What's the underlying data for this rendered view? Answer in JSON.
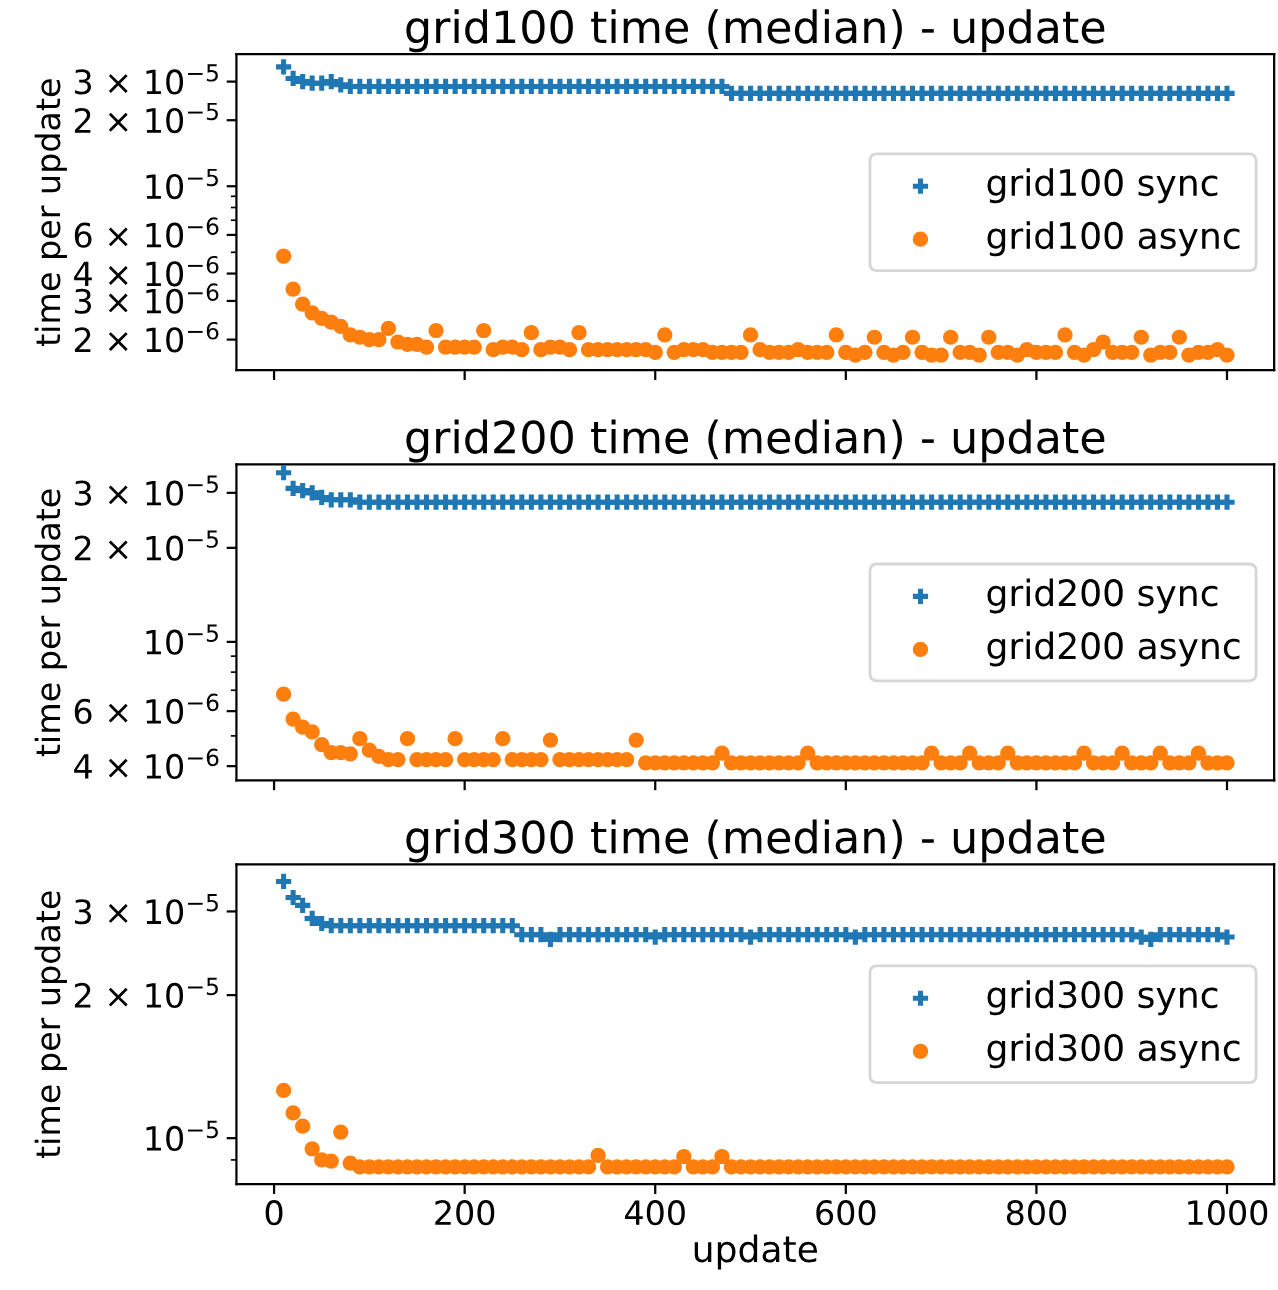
{
  "chart_data": [
    {
      "type": "scatter",
      "title": "grid100 time (median) - update",
      "ylabel": "time per update",
      "log": "y",
      "legend": "right",
      "tick_labels": "y",
      "x": [
        10,
        20,
        30,
        40,
        50,
        60,
        70,
        80,
        90,
        100,
        110,
        120,
        130,
        140,
        150,
        160,
        170,
        180,
        190,
        200,
        210,
        220,
        230,
        240,
        250,
        260,
        270,
        280,
        290,
        300,
        310,
        320,
        330,
        340,
        350,
        360,
        370,
        380,
        390,
        400,
        410,
        420,
        430,
        440,
        450,
        460,
        470,
        480,
        490,
        500,
        510,
        520,
        530,
        540,
        550,
        560,
        570,
        580,
        590,
        600,
        610,
        620,
        630,
        640,
        650,
        660,
        670,
        680,
        690,
        700,
        710,
        720,
        730,
        740,
        750,
        760,
        770,
        780,
        790,
        800,
        810,
        820,
        830,
        840,
        850,
        860,
        870,
        880,
        890,
        900,
        910,
        920,
        930,
        940,
        950,
        960,
        970,
        980,
        990,
        1000
      ],
      "xlim": [
        -39.5,
        1049.5
      ],
      "xticks": [
        0,
        200,
        400,
        600,
        800,
        1000
      ],
      "ylim": [
        1.45e-06,
        4e-05
      ],
      "yticks": [
        {
          "value": 2e-06,
          "label": "2 × 10$^{−6}$"
        },
        {
          "value": 3e-06,
          "label": "3 × 10$^{−6}$"
        },
        {
          "value": 4e-06,
          "label": "4 × 10$^{−6}$"
        },
        {
          "value": 5e-06,
          "label": null
        },
        {
          "value": 6e-06,
          "label": "6 × 10$^{−6}$"
        },
        {
          "value": 7e-06,
          "label": null
        },
        {
          "value": 8e-06,
          "label": null
        },
        {
          "value": 9e-06,
          "label": null
        },
        {
          "value": 1e-05,
          "label": "10$^{−5}$"
        },
        {
          "value": 2e-05,
          "label": "2 × 10$^{−5}$"
        },
        {
          "value": 3e-05,
          "label": "3 × 10$^{−5}$"
        }
      ],
      "series": [
        {
          "name": "grid100 sync",
          "color": "#1f77b4",
          "marker": "cross",
          "values": [
            3.5e-05,
            3.1e-05,
            3e-05,
            2.95e-05,
            2.95e-05,
            3e-05,
            2.9e-05,
            2.85e-05,
            2.85e-05,
            2.85e-05,
            2.85e-05,
            2.85e-05,
            2.85e-05,
            2.85e-05,
            2.85e-05,
            2.85e-05,
            2.85e-05,
            2.85e-05,
            2.85e-05,
            2.85e-05,
            2.85e-05,
            2.85e-05,
            2.85e-05,
            2.85e-05,
            2.85e-05,
            2.85e-05,
            2.85e-05,
            2.85e-05,
            2.85e-05,
            2.85e-05,
            2.85e-05,
            2.85e-05,
            2.85e-05,
            2.85e-05,
            2.85e-05,
            2.85e-05,
            2.85e-05,
            2.85e-05,
            2.85e-05,
            2.85e-05,
            2.85e-05,
            2.85e-05,
            2.85e-05,
            2.85e-05,
            2.85e-05,
            2.85e-05,
            2.85e-05,
            2.65e-05,
            2.65e-05,
            2.65e-05,
            2.65e-05,
            2.65e-05,
            2.65e-05,
            2.65e-05,
            2.65e-05,
            2.65e-05,
            2.65e-05,
            2.65e-05,
            2.65e-05,
            2.65e-05,
            2.65e-05,
            2.65e-05,
            2.65e-05,
            2.65e-05,
            2.65e-05,
            2.65e-05,
            2.65e-05,
            2.65e-05,
            2.65e-05,
            2.65e-05,
            2.65e-05,
            2.65e-05,
            2.65e-05,
            2.65e-05,
            2.65e-05,
            2.65e-05,
            2.65e-05,
            2.65e-05,
            2.65e-05,
            2.65e-05,
            2.65e-05,
            2.65e-05,
            2.65e-05,
            2.65e-05,
            2.65e-05,
            2.65e-05,
            2.65e-05,
            2.65e-05,
            2.65e-05,
            2.65e-05,
            2.65e-05,
            2.65e-05,
            2.65e-05,
            2.65e-05,
            2.65e-05,
            2.65e-05,
            2.65e-05,
            2.65e-05,
            2.65e-05,
            2.65e-05
          ]
        },
        {
          "name": "grid100 async",
          "color": "#ff7f0e",
          "marker": "circle",
          "values": [
            4.8e-06,
            3.4e-06,
            2.9e-06,
            2.65e-06,
            2.5e-06,
            2.4e-06,
            2.3e-06,
            2.1e-06,
            2.05e-06,
            2e-06,
            2e-06,
            2.25e-06,
            1.95e-06,
            1.9e-06,
            1.9e-06,
            1.85e-06,
            2.2e-06,
            1.85e-06,
            1.85e-06,
            1.85e-06,
            1.85e-06,
            2.2e-06,
            1.8e-06,
            1.85e-06,
            1.85e-06,
            1.8e-06,
            2.15e-06,
            1.8e-06,
            1.85e-06,
            1.85e-06,
            1.8e-06,
            2.15e-06,
            1.8e-06,
            1.8e-06,
            1.8e-06,
            1.8e-06,
            1.8e-06,
            1.8e-06,
            1.8e-06,
            1.75e-06,
            2.1e-06,
            1.75e-06,
            1.8e-06,
            1.8e-06,
            1.8e-06,
            1.75e-06,
            1.75e-06,
            1.75e-06,
            1.75e-06,
            2.1e-06,
            1.8e-06,
            1.75e-06,
            1.75e-06,
            1.75e-06,
            1.8e-06,
            1.75e-06,
            1.75e-06,
            1.75e-06,
            2.1e-06,
            1.75e-06,
            1.7e-06,
            1.75e-06,
            2.05e-06,
            1.75e-06,
            1.7e-06,
            1.75e-06,
            2.05e-06,
            1.75e-06,
            1.7e-06,
            1.7e-06,
            2.05e-06,
            1.75e-06,
            1.75e-06,
            1.7e-06,
            2.05e-06,
            1.75e-06,
            1.75e-06,
            1.7e-06,
            1.8e-06,
            1.75e-06,
            1.75e-06,
            1.75e-06,
            2.1e-06,
            1.75e-06,
            1.7e-06,
            1.8e-06,
            1.95e-06,
            1.75e-06,
            1.75e-06,
            1.75e-06,
            2.05e-06,
            1.7e-06,
            1.75e-06,
            1.75e-06,
            2.05e-06,
            1.7e-06,
            1.75e-06,
            1.75e-06,
            1.8e-06,
            1.7e-06
          ]
        }
      ]
    },
    {
      "type": "scatter",
      "title": "grid200 time (median) - update",
      "ylabel": "time per update",
      "log": "y",
      "legend": "right",
      "tick_labels": "y",
      "x": [
        10,
        20,
        30,
        40,
        50,
        60,
        70,
        80,
        90,
        100,
        110,
        120,
        130,
        140,
        150,
        160,
        170,
        180,
        190,
        200,
        210,
        220,
        230,
        240,
        250,
        260,
        270,
        280,
        290,
        300,
        310,
        320,
        330,
        340,
        350,
        360,
        370,
        380,
        390,
        400,
        410,
        420,
        430,
        440,
        450,
        460,
        470,
        480,
        490,
        500,
        510,
        520,
        530,
        540,
        550,
        560,
        570,
        580,
        590,
        600,
        610,
        620,
        630,
        640,
        650,
        660,
        670,
        680,
        690,
        700,
        710,
        720,
        730,
        740,
        750,
        760,
        770,
        780,
        790,
        800,
        810,
        820,
        830,
        840,
        850,
        860,
        870,
        880,
        890,
        900,
        910,
        920,
        930,
        940,
        950,
        960,
        970,
        980,
        990,
        1000
      ],
      "xlim": [
        -39.5,
        1049.5
      ],
      "xticks": [
        0,
        200,
        400,
        600,
        800,
        1000
      ],
      "ylim": [
        3.6e-06,
        3.7e-05
      ],
      "yticks": [
        {
          "value": 4e-06,
          "label": "4 × 10$^{−6}$"
        },
        {
          "value": 5e-06,
          "label": null
        },
        {
          "value": 6e-06,
          "label": "6 × 10$^{−6}$"
        },
        {
          "value": 7e-06,
          "label": null
        },
        {
          "value": 8e-06,
          "label": null
        },
        {
          "value": 9e-06,
          "label": null
        },
        {
          "value": 1e-05,
          "label": "10$^{−5}$"
        },
        {
          "value": 2e-05,
          "label": "2 × 10$^{−5}$"
        },
        {
          "value": 3e-05,
          "label": "3 × 10$^{−5}$"
        }
      ],
      "series": [
        {
          "name": "grid200 sync",
          "color": "#1f77b4",
          "marker": "cross",
          "values": [
            3.48e-05,
            3.1e-05,
            3.05e-05,
            3e-05,
            2.9e-05,
            2.85e-05,
            2.85e-05,
            2.85e-05,
            2.8e-05,
            2.8e-05,
            2.8e-05,
            2.8e-05,
            2.8e-05,
            2.8e-05,
            2.8e-05,
            2.8e-05,
            2.8e-05,
            2.8e-05,
            2.8e-05,
            2.8e-05,
            2.8e-05,
            2.8e-05,
            2.8e-05,
            2.8e-05,
            2.8e-05,
            2.8e-05,
            2.8e-05,
            2.8e-05,
            2.8e-05,
            2.8e-05,
            2.8e-05,
            2.8e-05,
            2.8e-05,
            2.8e-05,
            2.8e-05,
            2.8e-05,
            2.8e-05,
            2.8e-05,
            2.8e-05,
            2.8e-05,
            2.8e-05,
            2.8e-05,
            2.8e-05,
            2.8e-05,
            2.8e-05,
            2.8e-05,
            2.8e-05,
            2.8e-05,
            2.8e-05,
            2.8e-05,
            2.8e-05,
            2.8e-05,
            2.8e-05,
            2.8e-05,
            2.8e-05,
            2.8e-05,
            2.8e-05,
            2.8e-05,
            2.8e-05,
            2.8e-05,
            2.8e-05,
            2.8e-05,
            2.8e-05,
            2.8e-05,
            2.8e-05,
            2.8e-05,
            2.8e-05,
            2.8e-05,
            2.8e-05,
            2.8e-05,
            2.8e-05,
            2.8e-05,
            2.8e-05,
            2.8e-05,
            2.8e-05,
            2.8e-05,
            2.8e-05,
            2.8e-05,
            2.8e-05,
            2.8e-05,
            2.8e-05,
            2.8e-05,
            2.8e-05,
            2.8e-05,
            2.8e-05,
            2.8e-05,
            2.8e-05,
            2.8e-05,
            2.8e-05,
            2.8e-05,
            2.8e-05,
            2.8e-05,
            2.8e-05,
            2.8e-05,
            2.8e-05,
            2.8e-05,
            2.8e-05,
            2.8e-05,
            2.8e-05,
            2.8e-05
          ]
        },
        {
          "name": "grid200 async",
          "color": "#ff7f0e",
          "marker": "circle",
          "values": [
            6.8e-06,
            5.66e-06,
            5.33e-06,
            5.15e-06,
            4.69e-06,
            4.42e-06,
            4.42e-06,
            4.38e-06,
            4.9e-06,
            4.5e-06,
            4.3e-06,
            4.2e-06,
            4.2e-06,
            4.9e-06,
            4.2e-06,
            4.2e-06,
            4.2e-06,
            4.2e-06,
            4.9e-06,
            4.2e-06,
            4.2e-06,
            4.2e-06,
            4.2e-06,
            4.9e-06,
            4.2e-06,
            4.2e-06,
            4.2e-06,
            4.2e-06,
            4.85e-06,
            4.2e-06,
            4.2e-06,
            4.2e-06,
            4.2e-06,
            4.2e-06,
            4.2e-06,
            4.2e-06,
            4.2e-06,
            4.85e-06,
            4.1e-06,
            4.1e-06,
            4.1e-06,
            4.1e-06,
            4.1e-06,
            4.1e-06,
            4.1e-06,
            4.1e-06,
            4.4e-06,
            4.1e-06,
            4.1e-06,
            4.1e-06,
            4.1e-06,
            4.1e-06,
            4.1e-06,
            4.1e-06,
            4.1e-06,
            4.4e-06,
            4.1e-06,
            4.1e-06,
            4.1e-06,
            4.1e-06,
            4.1e-06,
            4.1e-06,
            4.1e-06,
            4.1e-06,
            4.1e-06,
            4.1e-06,
            4.1e-06,
            4.1e-06,
            4.4e-06,
            4.1e-06,
            4.1e-06,
            4.1e-06,
            4.4e-06,
            4.1e-06,
            4.1e-06,
            4.1e-06,
            4.4e-06,
            4.1e-06,
            4.1e-06,
            4.1e-06,
            4.1e-06,
            4.1e-06,
            4.1e-06,
            4.1e-06,
            4.4e-06,
            4.1e-06,
            4.1e-06,
            4.1e-06,
            4.4e-06,
            4.1e-06,
            4.1e-06,
            4.1e-06,
            4.4e-06,
            4.1e-06,
            4.1e-06,
            4.1e-06,
            4.4e-06,
            4.1e-06,
            4.1e-06,
            4.1e-06
          ]
        }
      ]
    },
    {
      "type": "scatter",
      "title": "grid300 time (median) - update",
      "ylabel": "time per update",
      "xlabel": "update",
      "log": "y",
      "legend": "right",
      "x": [
        10,
        20,
        30,
        40,
        50,
        60,
        70,
        80,
        90,
        100,
        110,
        120,
        130,
        140,
        150,
        160,
        170,
        180,
        190,
        200,
        210,
        220,
        230,
        240,
        250,
        260,
        270,
        280,
        290,
        300,
        310,
        320,
        330,
        340,
        350,
        360,
        370,
        380,
        390,
        400,
        410,
        420,
        430,
        440,
        450,
        460,
        470,
        480,
        490,
        500,
        510,
        520,
        530,
        540,
        550,
        560,
        570,
        580,
        590,
        600,
        610,
        620,
        630,
        640,
        650,
        660,
        670,
        680,
        690,
        700,
        710,
        720,
        730,
        740,
        750,
        760,
        770,
        780,
        790,
        800,
        810,
        820,
        830,
        840,
        850,
        860,
        870,
        880,
        890,
        900,
        910,
        920,
        930,
        940,
        950,
        960,
        970,
        980,
        990,
        1000
      ],
      "xlim": [
        -39.5,
        1049.5
      ],
      "xticks": [
        0,
        200,
        400,
        600,
        800,
        1000
      ],
      "ylim": [
        8e-06,
        3.77e-05
      ],
      "yticks": [
        {
          "value": 9e-06,
          "label": null
        },
        {
          "value": 1e-05,
          "label": "10$^{−5}$"
        },
        {
          "value": 2e-05,
          "label": "2 × 10$^{−5}$"
        },
        {
          "value": 3e-05,
          "label": "3 × 10$^{−5}$"
        }
      ],
      "series": [
        {
          "name": "grid300 sync",
          "color": "#1f77b4",
          "marker": "cross",
          "values": [
            3.47e-05,
            3.21e-05,
            3.09e-05,
            2.9e-05,
            2.83e-05,
            2.8e-05,
            2.8e-05,
            2.8e-05,
            2.8e-05,
            2.8e-05,
            2.8e-05,
            2.8e-05,
            2.8e-05,
            2.8e-05,
            2.8e-05,
            2.8e-05,
            2.8e-05,
            2.8e-05,
            2.8e-05,
            2.8e-05,
            2.8e-05,
            2.8e-05,
            2.8e-05,
            2.8e-05,
            2.8e-05,
            2.68e-05,
            2.68e-05,
            2.68e-05,
            2.62e-05,
            2.68e-05,
            2.68e-05,
            2.68e-05,
            2.68e-05,
            2.68e-05,
            2.68e-05,
            2.68e-05,
            2.68e-05,
            2.68e-05,
            2.68e-05,
            2.65e-05,
            2.68e-05,
            2.68e-05,
            2.68e-05,
            2.68e-05,
            2.68e-05,
            2.68e-05,
            2.68e-05,
            2.68e-05,
            2.68e-05,
            2.65e-05,
            2.68e-05,
            2.68e-05,
            2.68e-05,
            2.68e-05,
            2.68e-05,
            2.68e-05,
            2.68e-05,
            2.68e-05,
            2.68e-05,
            2.68e-05,
            2.65e-05,
            2.68e-05,
            2.68e-05,
            2.68e-05,
            2.68e-05,
            2.68e-05,
            2.68e-05,
            2.68e-05,
            2.68e-05,
            2.68e-05,
            2.68e-05,
            2.68e-05,
            2.68e-05,
            2.68e-05,
            2.68e-05,
            2.68e-05,
            2.68e-05,
            2.68e-05,
            2.68e-05,
            2.68e-05,
            2.68e-05,
            2.68e-05,
            2.68e-05,
            2.68e-05,
            2.68e-05,
            2.68e-05,
            2.68e-05,
            2.68e-05,
            2.68e-05,
            2.68e-05,
            2.65e-05,
            2.62e-05,
            2.68e-05,
            2.68e-05,
            2.68e-05,
            2.68e-05,
            2.68e-05,
            2.68e-05,
            2.68e-05,
            2.65e-05
          ]
        },
        {
          "name": "grid300 async",
          "color": "#ff7f0e",
          "marker": "circle",
          "values": [
            1.26e-05,
            1.13e-05,
            1.06e-05,
            9.5e-06,
            9e-06,
            8.95e-06,
            1.03e-05,
            8.86e-06,
            8.7e-06,
            8.7e-06,
            8.7e-06,
            8.7e-06,
            8.7e-06,
            8.7e-06,
            8.7e-06,
            8.7e-06,
            8.7e-06,
            8.7e-06,
            8.7e-06,
            8.7e-06,
            8.7e-06,
            8.7e-06,
            8.7e-06,
            8.7e-06,
            8.7e-06,
            8.7e-06,
            8.7e-06,
            8.7e-06,
            8.7e-06,
            8.7e-06,
            8.7e-06,
            8.7e-06,
            8.7e-06,
            9.2e-06,
            8.7e-06,
            8.7e-06,
            8.7e-06,
            8.7e-06,
            8.7e-06,
            8.7e-06,
            8.7e-06,
            8.7e-06,
            9.15e-06,
            8.7e-06,
            8.7e-06,
            8.7e-06,
            9.15e-06,
            8.7e-06,
            8.7e-06,
            8.7e-06,
            8.7e-06,
            8.7e-06,
            8.7e-06,
            8.7e-06,
            8.7e-06,
            8.7e-06,
            8.7e-06,
            8.7e-06,
            8.7e-06,
            8.7e-06,
            8.7e-06,
            8.7e-06,
            8.7e-06,
            8.7e-06,
            8.7e-06,
            8.7e-06,
            8.7e-06,
            8.7e-06,
            8.7e-06,
            8.7e-06,
            8.7e-06,
            8.7e-06,
            8.7e-06,
            8.7e-06,
            8.7e-06,
            8.7e-06,
            8.7e-06,
            8.7e-06,
            8.7e-06,
            8.7e-06,
            8.7e-06,
            8.7e-06,
            8.7e-06,
            8.7e-06,
            8.7e-06,
            8.7e-06,
            8.7e-06,
            8.7e-06,
            8.7e-06,
            8.7e-06,
            8.7e-06,
            8.7e-06,
            8.7e-06,
            8.7e-06,
            8.7e-06,
            8.7e-06,
            8.7e-06,
            8.7e-06,
            8.7e-06,
            8.7e-06
          ]
        }
      ]
    }
  ]
}
